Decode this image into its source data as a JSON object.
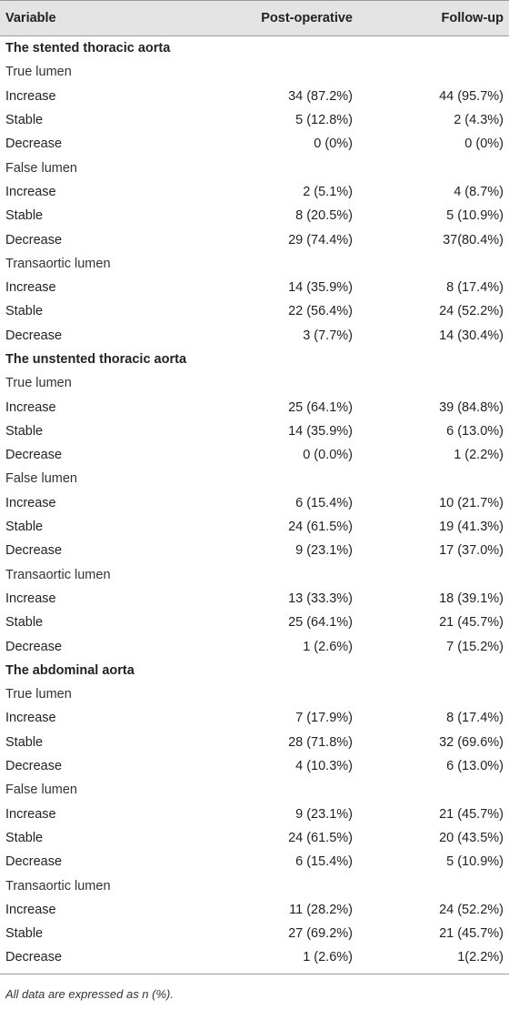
{
  "header": {
    "variable": "Variable",
    "post": "Post-operative",
    "follow": "Follow-up"
  },
  "sections": [
    {
      "title": "The stented thoracic aorta",
      "groups": [
        {
          "name": "True lumen",
          "rows": [
            {
              "label": "Increase",
              "post": "34 (87.2%)",
              "follow": "44 (95.7%)"
            },
            {
              "label": "Stable",
              "post": "5 (12.8%)",
              "follow": "2 (4.3%)"
            },
            {
              "label": "Decrease",
              "post": "0 (0%)",
              "follow": "0 (0%)"
            }
          ]
        },
        {
          "name": "False lumen",
          "rows": [
            {
              "label": "Increase",
              "post": "2 (5.1%)",
              "follow": "4 (8.7%)"
            },
            {
              "label": "Stable",
              "post": "8 (20.5%)",
              "follow": "5 (10.9%)"
            },
            {
              "label": "Decrease",
              "post": "29 (74.4%)",
              "follow": "37(80.4%)"
            }
          ]
        },
        {
          "name": "Transaortic lumen",
          "rows": [
            {
              "label": "Increase",
              "post": "14 (35.9%)",
              "follow": "8 (17.4%)"
            },
            {
              "label": "Stable",
              "post": "22 (56.4%)",
              "follow": "24 (52.2%)"
            },
            {
              "label": "Decrease",
              "post": "3 (7.7%)",
              "follow": "14 (30.4%)"
            }
          ]
        }
      ]
    },
    {
      "title": "The unstented thoracic aorta",
      "groups": [
        {
          "name": "True lumen",
          "rows": [
            {
              "label": "Increase",
              "post": "25 (64.1%)",
              "follow": "39 (84.8%)"
            },
            {
              "label": "Stable",
              "post": "14 (35.9%)",
              "follow": "6 (13.0%)"
            },
            {
              "label": "Decrease",
              "post": "0 (0.0%)",
              "follow": "1 (2.2%)"
            }
          ]
        },
        {
          "name": "False lumen",
          "rows": [
            {
              "label": "Increase",
              "post": "6 (15.4%)",
              "follow": "10 (21.7%)"
            },
            {
              "label": "Stable",
              "post": "24 (61.5%)",
              "follow": "19 (41.3%)"
            },
            {
              "label": "Decrease",
              "post": "9 (23.1%)",
              "follow": "17 (37.0%)"
            }
          ]
        },
        {
          "name": "Transaortic lumen",
          "rows": [
            {
              "label": "Increase",
              "post": "13 (33.3%)",
              "follow": "18 (39.1%)"
            },
            {
              "label": "Stable",
              "post": "25 (64.1%)",
              "follow": "21 (45.7%)"
            },
            {
              "label": "Decrease",
              "post": "1 (2.6%)",
              "follow": "7 (15.2%)"
            }
          ]
        }
      ]
    },
    {
      "title": "The abdominal aorta",
      "groups": [
        {
          "name": "True lumen",
          "rows": [
            {
              "label": "Increase",
              "post": "7 (17.9%)",
              "follow": "8 (17.4%)"
            },
            {
              "label": "Stable",
              "post": "28 (71.8%)",
              "follow": "32 (69.6%)"
            },
            {
              "label": "Decrease",
              "post": "4 (10.3%)",
              "follow": "6 (13.0%)"
            }
          ]
        },
        {
          "name": "False lumen",
          "rows": [
            {
              "label": "Increase",
              "post": "9 (23.1%)",
              "follow": "21 (45.7%)"
            },
            {
              "label": "Stable",
              "post": "24 (61.5%)",
              "follow": "20 (43.5%)"
            },
            {
              "label": "Decrease",
              "post": "6 (15.4%)",
              "follow": "5 (10.9%)"
            }
          ]
        },
        {
          "name": "Transaortic lumen",
          "rows": [
            {
              "label": "Increase",
              "post": "11 (28.2%)",
              "follow": "24 (52.2%)"
            },
            {
              "label": "Stable",
              "post": "27 (69.2%)",
              "follow": "21 (45.7%)"
            },
            {
              "label": "Decrease",
              "post": "1 (2.6%)",
              "follow": "1(2.2%)"
            }
          ]
        }
      ]
    }
  ],
  "footnote": "All data are expressed as n (%)."
}
